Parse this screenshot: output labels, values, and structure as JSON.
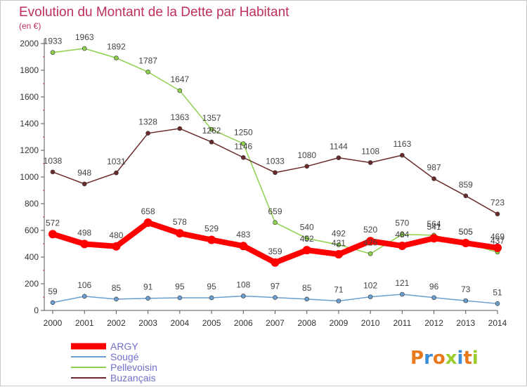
{
  "chart_data": {
    "type": "line",
    "title": "Evolution du Montant de la Dette par Habitant",
    "unit_label": "(en €)",
    "x": [
      "2000",
      "2001",
      "2002",
      "2003",
      "2004",
      "2005",
      "2006",
      "2007",
      "2008",
      "2009",
      "2010",
      "2011",
      "2012",
      "2013",
      "2014"
    ],
    "ylim": [
      0,
      2000
    ],
    "yticks": [
      "0",
      "200",
      "400",
      "600",
      "800",
      "1000",
      "1200",
      "1400",
      "1600",
      "1800",
      "2000"
    ],
    "grid": false,
    "legend_position": "bottom-left",
    "series": [
      {
        "name": "ARGY",
        "color": "#ff0000",
        "values": [
          572,
          498,
          480,
          658,
          578,
          529,
          483,
          359,
          452,
          421,
          520,
          484,
          541,
          505,
          469
        ]
      },
      {
        "name": "Sougé",
        "color": "#6a9fd0",
        "values": [
          59,
          106,
          85,
          91,
          95,
          95,
          108,
          97,
          85,
          71,
          102,
          121,
          96,
          73,
          51
        ]
      },
      {
        "name": "Pellevoisin",
        "color": "#8ed04c",
        "values": [
          1933,
          1963,
          1892,
          1787,
          1647,
          1357,
          1250,
          659,
          540,
          492,
          425,
          570,
          564,
          505,
          437
        ]
      },
      {
        "name": "Buzançais",
        "color": "#6b2a2a",
        "values": [
          1038,
          948,
          1031,
          1328,
          1363,
          1262,
          1146,
          1033,
          1080,
          1144,
          1108,
          1163,
          987,
          859,
          723
        ]
      }
    ]
  },
  "logo": {
    "text": "Proxiti",
    "letter_colors": [
      "#e87a1e",
      "#3a8ed8",
      "#e87a1e",
      "#9bcc2e",
      "#3a8ed8",
      "#e87a1e",
      "#9bcc2e"
    ]
  }
}
